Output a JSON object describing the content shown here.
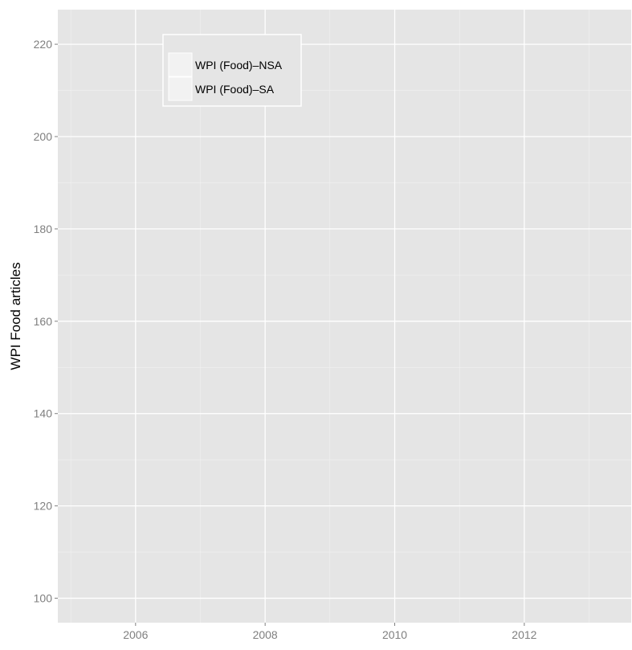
{
  "chart_data": {
    "type": "line",
    "title": "",
    "xlabel": "",
    "ylabel": "WPI Food articles",
    "xlim": [
      2004.8,
      2013.65
    ],
    "ylim": [
      94.7,
      227.5
    ],
    "x_ticks": [
      2006,
      2008,
      2010,
      2012
    ],
    "x_tick_labels": [
      "2006",
      "2008",
      "2010",
      "2012"
    ],
    "y_ticks": [
      100,
      120,
      140,
      160,
      180,
      200,
      220
    ],
    "y_tick_labels": [
      "100",
      "120",
      "140",
      "160",
      "180",
      "200",
      "220"
    ],
    "grid": true,
    "legend": {
      "position": "top-left",
      "entries": [
        "WPI (Food)–NSA",
        "WPI (Food)–SA"
      ]
    },
    "series": [
      {
        "name": "WPI (Food)–NSA",
        "x": [],
        "values": []
      },
      {
        "name": "WPI (Food)–SA",
        "x": [],
        "values": []
      }
    ],
    "colors": {
      "panel_background": "#e5e5e5",
      "grid_major": "#ffffff",
      "grid_minor": "#f2f2f2",
      "tick_label": "#7f7f7f",
      "axis_title": "#000000",
      "legend_key": "#f2f2f2",
      "legend_border": "#ffffff"
    }
  }
}
